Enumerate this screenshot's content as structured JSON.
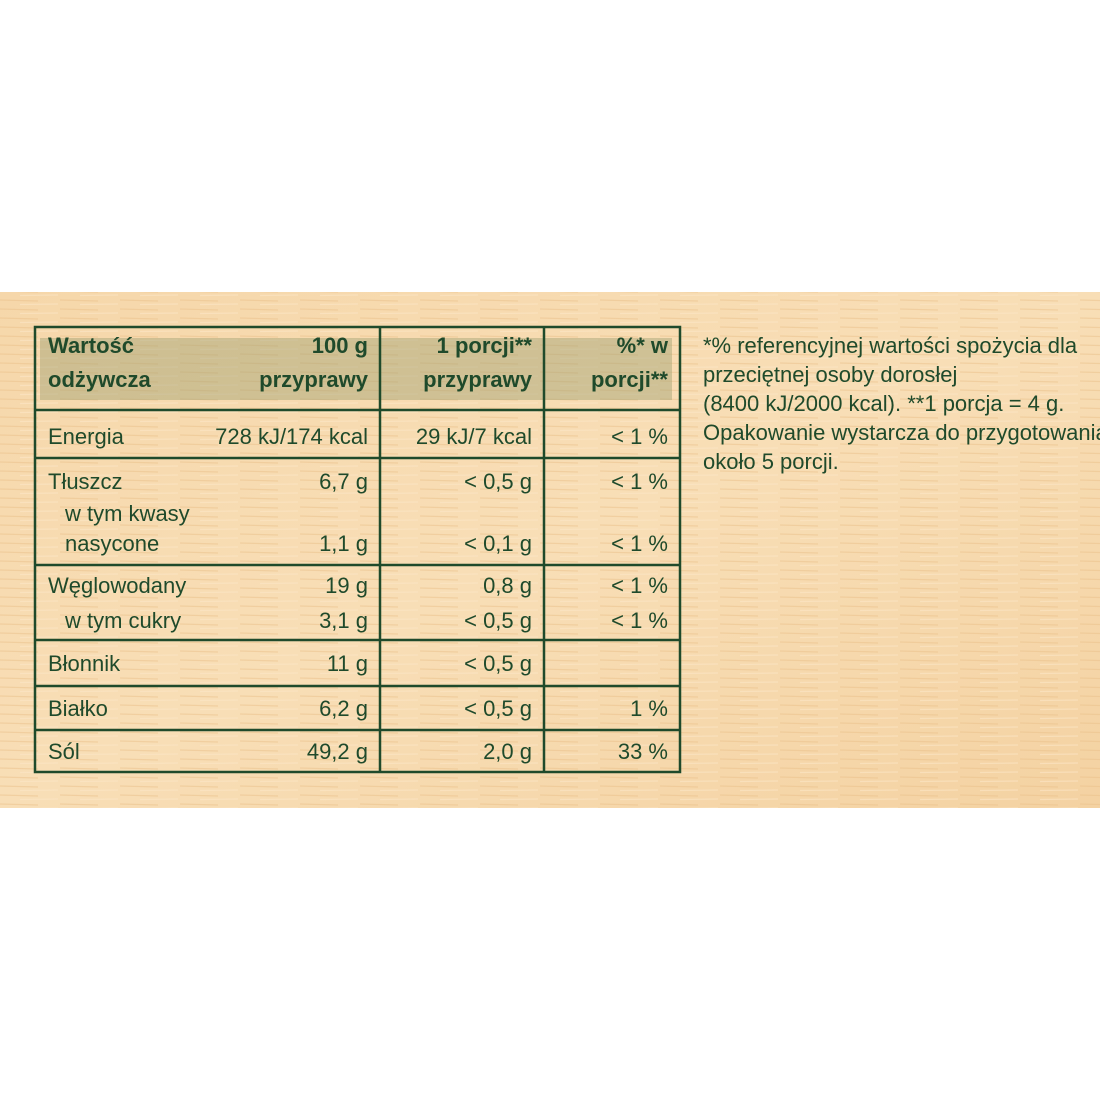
{
  "table": {
    "header": [
      {
        "lines": [
          "Wartość",
          "odżywcza"
        ]
      },
      {
        "lines": [
          "100 g",
          "przyprawy"
        ]
      },
      {
        "lines": [
          "1 porcji**",
          "przyprawy"
        ]
      },
      {
        "lines": [
          "%* w",
          "porcji**"
        ]
      }
    ],
    "rows": [
      {
        "lines": [
          {
            "label": "Energia",
            "per_100g": "728 kJ/174 kcal",
            "per_portion": "29 kJ/7 kcal",
            "percent": "< 1 %"
          }
        ]
      },
      {
        "lines": [
          {
            "label": "Tłuszcz",
            "per_100g": "6,7 g",
            "per_portion": "< 0,5 g",
            "percent": "< 1 %"
          },
          {
            "label": "w tym kwasy"
          },
          {
            "label": "nasycone",
            "per_100g": "1,1 g",
            "per_portion": "< 0,1 g",
            "percent": "< 1 %"
          }
        ]
      },
      {
        "lines": [
          {
            "label": "Węglowodany",
            "per_100g": "19 g",
            "per_portion": "0,8 g",
            "percent": "< 1 %"
          },
          {
            "label": "w tym cukry",
            "per_100g": "3,1 g",
            "per_portion": "< 0,5 g",
            "percent": "< 1 %"
          }
        ]
      },
      {
        "lines": [
          {
            "label": "Błonnik",
            "per_100g": "11 g",
            "per_portion": "< 0,5 g"
          }
        ]
      },
      {
        "lines": [
          {
            "label": "Białko",
            "per_100g": "6,2 g",
            "per_portion": "< 0,5 g",
            "percent": "1 %"
          }
        ]
      },
      {
        "lines": [
          {
            "label": "Sól",
            "per_100g": "49,2 g",
            "per_portion": "2,0 g",
            "percent": "33 %"
          }
        ]
      }
    ]
  },
  "note": {
    "lines": [
      "*% referencyjnej wartości spożycia dla",
      "przeciętnej osoby dorosłej",
      "(8400 kJ/2000 kcal). **1 porcja = 4 g.",
      "Opakowanie wystarcza do przygotowania",
      "około 5 porcji."
    ]
  }
}
